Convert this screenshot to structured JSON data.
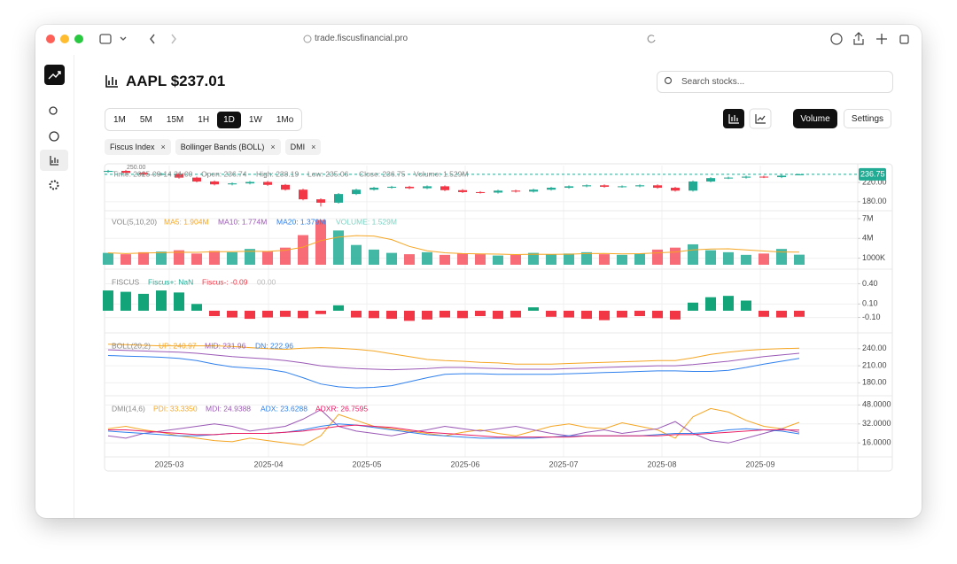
{
  "browser": {
    "url": "trade.fiscusfinancial.pro"
  },
  "header": {
    "title": "AAPL $237.01",
    "search_placeholder": "Search stocks..."
  },
  "intervals": [
    "1M",
    "5M",
    "15M",
    "1H",
    "1D",
    "1W",
    "1Mo"
  ],
  "active_interval": 4,
  "buttons": [
    "Volume",
    "Settings"
  ],
  "indicators": [
    "Fiscus Index",
    "Bollinger Bands (BOLL)",
    "DMI"
  ],
  "time_axis": {
    "xlim": [
      -0.2,
      42.3
    ],
    "xticks": [
      {
        "value": 3.45,
        "label": "2025-03"
      },
      {
        "value": 9.05,
        "label": "2025-04"
      },
      {
        "value": 14.6,
        "label": "2025-05"
      },
      {
        "value": 20.15,
        "label": "2025-06"
      },
      {
        "value": 25.7,
        "label": "2025-07"
      },
      {
        "value": 31.25,
        "label": "2025-08"
      },
      {
        "value": 36.8,
        "label": "2025-09"
      }
    ]
  },
  "chart_data": [
    {
      "type": "candlestick",
      "legend": [
        {
          "text": "Time: 2025-09-14 21:00",
          "color": "#888888"
        },
        {
          "text": "Open: 236.74",
          "color": "#888888"
        },
        {
          "text": "High: 238.19",
          "color": "#888888"
        },
        {
          "text": "Low: 235.06",
          "color": "#888888"
        },
        {
          "text": "Close: 236.75",
          "color": "#888888"
        },
        {
          "text": "Volume: 1.529M",
          "color": "#888888"
        }
      ],
      "max_label": "250.00",
      "price_tag": "236.75",
      "up_color": "#22ab94",
      "down_color": "#f23645",
      "ylim": [
        165,
        255
      ],
      "yticks": [
        {
          "value": 220,
          "label": "220.00"
        },
        {
          "value": 180,
          "label": "180.00"
        }
      ],
      "open": [
        242,
        244,
        240,
        236,
        238,
        230,
        222,
        216,
        218,
        221,
        215,
        205,
        185,
        178,
        196,
        205,
        209,
        211,
        208,
        212,
        204,
        200,
        199,
        203,
        201,
        205,
        209,
        212,
        214,
        211,
        212,
        214,
        209,
        203,
        222,
        229,
        230,
        232,
        231,
        236.74
      ],
      "high": [
        246,
        246,
        242,
        240,
        240,
        232,
        224,
        220,
        223,
        223,
        217,
        207,
        187,
        198,
        207,
        211,
        213,
        213,
        214,
        214,
        206,
        202,
        205,
        205,
        207,
        211,
        214,
        216,
        216,
        214,
        216,
        216,
        211,
        224,
        231,
        232,
        234,
        234,
        236,
        238.19
      ],
      "low": [
        240,
        238,
        234,
        234,
        228,
        220,
        214,
        214,
        216,
        213,
        203,
        183,
        170,
        176,
        194,
        203,
        207,
        206,
        206,
        202,
        198,
        197,
        197,
        199,
        199,
        203,
        207,
        210,
        209,
        209,
        210,
        207,
        201,
        201,
        220,
        227,
        228,
        229,
        229,
        235.06
      ],
      "close": [
        244,
        240,
        236,
        238,
        230,
        222,
        216,
        218,
        221,
        215,
        205,
        185,
        178,
        196,
        205,
        209,
        211,
        208,
        212,
        204,
        200,
        199,
        203,
        201,
        205,
        209,
        212,
        214,
        211,
        212,
        214,
        209,
        203,
        222,
        229,
        230,
        232,
        231,
        234,
        236.75
      ]
    },
    {
      "type": "bar",
      "legend": [
        {
          "text": "VOL(5,10,20)",
          "color": "#888888"
        },
        {
          "text": "MA5: 1.904M",
          "color": "#f5a623"
        },
        {
          "text": "MA10: 1.774M",
          "color": "#9b59b6"
        },
        {
          "text": "MA20: 1.379M",
          "color": "#2f80ed"
        },
        {
          "text": "VOLUME: 1.529M",
          "color": "#7fd3c2"
        }
      ],
      "up_color": "#22ab94",
      "down_color": "#f7525f",
      "ylim": [
        0,
        7800000
      ],
      "yticks": [
        {
          "value": 7000000,
          "label": "7M"
        },
        {
          "value": 4000000,
          "label": "4M"
        },
        {
          "value": 1000000,
          "label": "1000K"
        }
      ],
      "values": [
        1800000,
        1600000,
        1900000,
        2000000,
        2200000,
        1700000,
        2100000,
        1900000,
        2400000,
        2000000,
        2600000,
        4500000,
        6800000,
        5200000,
        3000000,
        2300000,
        1800000,
        1600000,
        1900000,
        1500000,
        1700000,
        1600000,
        1400000,
        1500000,
        1800000,
        1600000,
        1700000,
        1900000,
        1600000,
        1500000,
        1700000,
        2300000,
        2600000,
        3100000,
        2200000,
        1900000,
        1500000,
        1700000,
        2400000,
        1529000
      ],
      "series": [
        {
          "color": "#f5a623",
          "values": [
            1800000,
            1700000,
            1770000,
            1830000,
            1900000,
            1880000,
            1980000,
            1980000,
            2060000,
            2020000,
            2200000,
            2680000,
            3660000,
            4200000,
            4420000,
            4360000,
            3820000,
            2780000,
            2120000,
            1820000,
            1700000,
            1660000,
            1620000,
            1540000,
            1600000,
            1580000,
            1600000,
            1700000,
            1720000,
            1660000,
            1680000,
            1800000,
            1940000,
            2240000,
            2380000,
            2420000,
            2260000,
            2080000,
            1940000,
            1904000
          ]
        }
      ]
    },
    {
      "type": "bar",
      "legend": [
        {
          "text": "FISCUS",
          "color": "#888888"
        },
        {
          "text": "Fiscus+: NaN",
          "color": "#22ab94"
        },
        {
          "text": "Fiscus-: -0.09",
          "color": "#f23645"
        },
        {
          "text": "00.00",
          "color": "#bbbbbb"
        }
      ],
      "pos_color": "#13a579",
      "neg_color": "#f23645",
      "ylim": [
        -0.25,
        0.55
      ],
      "yticks": [
        {
          "value": 0.4,
          "label": "0.40"
        },
        {
          "value": 0.1,
          "label": "0.10"
        },
        {
          "value": -0.1,
          "label": "-0.10"
        }
      ],
      "values": [
        0.3,
        0.28,
        0.25,
        0.3,
        0.27,
        0.1,
        -0.08,
        -0.1,
        -0.12,
        -0.1,
        -0.09,
        -0.11,
        -0.05,
        0.08,
        -0.1,
        -0.11,
        -0.12,
        -0.15,
        -0.13,
        -0.1,
        -0.11,
        -0.08,
        -0.12,
        -0.1,
        0.05,
        -0.09,
        -0.1,
        -0.12,
        -0.14,
        -0.1,
        -0.08,
        -0.11,
        -0.13,
        0.12,
        0.2,
        0.22,
        0.15,
        -0.09,
        -0.1,
        -0.09
      ]
    },
    {
      "type": "line",
      "legend": [
        {
          "text": "BOLL(20,2)",
          "color": "#888888"
        },
        {
          "text": "UP: 240.97",
          "color": "#f5a623"
        },
        {
          "text": "MID: 231.96",
          "color": "#9b59b6"
        },
        {
          "text": "DN: 222.96",
          "color": "#2f80ed"
        }
      ],
      "ylim": [
        165,
        260
      ],
      "yticks": [
        {
          "value": 240,
          "label": "240.00"
        },
        {
          "value": 210,
          "label": "210.00"
        },
        {
          "value": 180,
          "label": "180.00"
        }
      ],
      "series": [
        {
          "color": "#f5a623",
          "values": [
            248,
            247,
            246,
            245,
            245,
            245,
            245,
            244,
            242,
            240,
            239,
            241,
            242,
            241,
            239,
            236,
            231,
            226,
            221,
            219,
            218,
            216,
            215,
            213,
            213,
            213,
            214,
            215,
            216,
            217,
            218,
            219,
            219,
            224,
            230,
            234,
            237,
            239,
            240,
            240.97
          ]
        },
        {
          "color": "#9b59b6",
          "values": [
            238,
            237,
            236,
            235,
            234,
            232,
            229,
            226,
            224,
            222,
            219,
            215,
            210,
            207,
            205,
            204,
            203,
            204,
            205,
            207,
            207,
            206,
            205,
            204,
            204,
            204,
            205,
            206,
            207,
            208,
            209,
            210,
            210,
            212,
            215,
            218,
            222,
            226,
            229,
            231.96
          ]
        },
        {
          "color": "#2f80ed",
          "values": [
            228,
            227,
            226,
            225,
            223,
            219,
            213,
            208,
            206,
            204,
            199,
            189,
            178,
            173,
            171,
            172,
            175,
            182,
            189,
            195,
            196,
            196,
            195,
            195,
            195,
            195,
            196,
            197,
            198,
            199,
            200,
            201,
            201,
            200,
            200,
            202,
            207,
            213,
            218,
            222.96
          ]
        }
      ]
    },
    {
      "type": "line",
      "legend": [
        {
          "text": "DMI(14,6)",
          "color": "#888888"
        },
        {
          "text": "PDI: 33.3350",
          "color": "#f5a623"
        },
        {
          "text": "MDI: 24.9388",
          "color": "#9b59b6"
        },
        {
          "text": "ADX: 23.6288",
          "color": "#2f80ed"
        },
        {
          "text": "ADXR: 26.7595",
          "color": "#e91e63"
        }
      ],
      "ylim": [
        5,
        52
      ],
      "yticks": [
        {
          "value": 48,
          "label": "48.0000"
        },
        {
          "value": 32,
          "label": "32.0000"
        },
        {
          "value": 16,
          "label": "16.0000"
        }
      ],
      "series": [
        {
          "color": "#f5a623",
          "values": [
            28,
            30,
            27,
            25,
            22,
            20,
            18,
            17,
            20,
            18,
            16,
            14,
            22,
            40,
            35,
            30,
            28,
            26,
            24,
            22,
            25,
            27,
            24,
            22,
            26,
            30,
            32,
            29,
            28,
            33,
            30,
            27,
            20,
            38,
            45,
            42,
            35,
            30,
            28,
            33.335
          ]
        },
        {
          "color": "#9b59b6",
          "values": [
            22,
            20,
            24,
            26,
            28,
            30,
            32,
            30,
            26,
            28,
            30,
            36,
            44,
            30,
            26,
            24,
            22,
            25,
            27,
            30,
            28,
            26,
            28,
            30,
            27,
            24,
            22,
            25,
            27,
            24,
            26,
            28,
            34,
            24,
            18,
            16,
            20,
            24,
            28,
            24.9388
          ]
        },
        {
          "color": "#2f80ed",
          "values": [
            26,
            25,
            24,
            23,
            22,
            22,
            23,
            24,
            24,
            24,
            25,
            27,
            30,
            32,
            31,
            29,
            27,
            25,
            23,
            22,
            21,
            20,
            20,
            20,
            20,
            21,
            22,
            22,
            22,
            22,
            22,
            23,
            24,
            24,
            25,
            27,
            28,
            27,
            26,
            23.6288
          ]
        },
        {
          "color": "#e91e63",
          "values": [
            27,
            27,
            26,
            25,
            24,
            23,
            23,
            24,
            24,
            24,
            25,
            26,
            28,
            30,
            31,
            30,
            29,
            27,
            25,
            24,
            23,
            22,
            21,
            21,
            21,
            21,
            21,
            22,
            22,
            22,
            22,
            22,
            23,
            23,
            24,
            25,
            26,
            27,
            27,
            26.7595
          ]
        }
      ]
    }
  ]
}
